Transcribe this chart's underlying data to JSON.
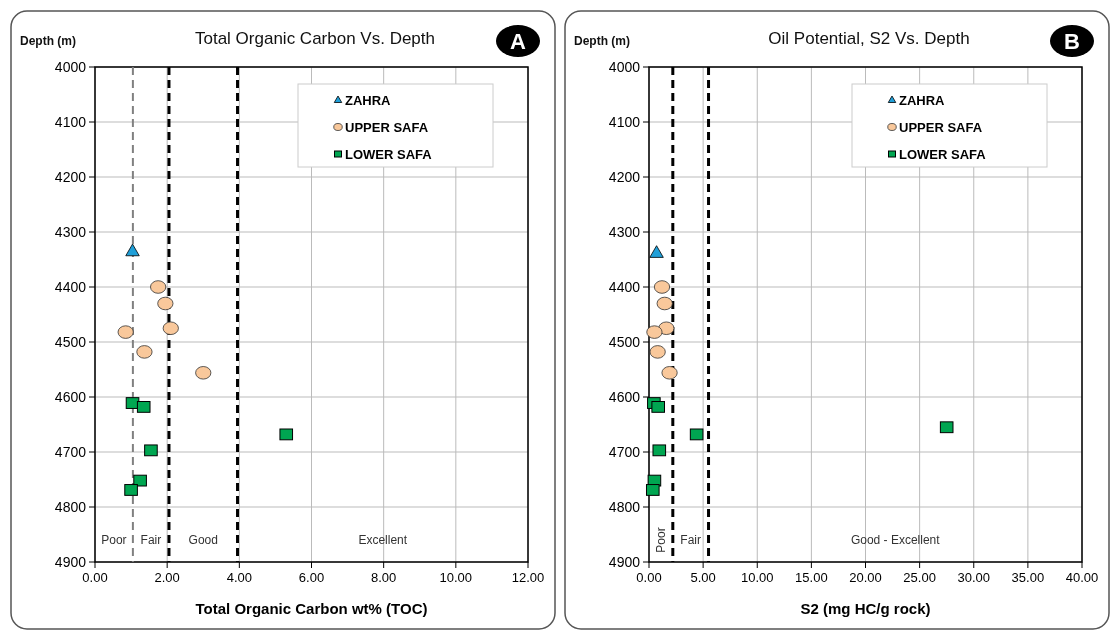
{
  "chart_data": [
    {
      "type": "scatter",
      "title": "Total Organic Carbon Vs. Depth",
      "xlabel": "Total Organic Carbon wt% (TOC)",
      "ylabel": "Depth (m)",
      "xlim": [
        0,
        12
      ],
      "xticks": [
        {
          "value": 0,
          "label": "0.00"
        },
        {
          "value": 2,
          "label": "2.00"
        },
        {
          "value": 4,
          "label": "4.00"
        },
        {
          "value": 6,
          "label": "6.00"
        },
        {
          "value": 8,
          "label": "8.00"
        },
        {
          "value": 10,
          "label": "10.00"
        },
        {
          "value": 12,
          "label": "12.00"
        }
      ],
      "ylim": [
        4900,
        4000
      ],
      "yticks": [
        4000,
        4100,
        4200,
        4300,
        4400,
        4500,
        4600,
        4700,
        4800,
        4900
      ],
      "grid": true,
      "legend": "top right",
      "series": [
        {
          "name": "ZAHRA",
          "color": "#1f9fd8",
          "marker": "triangle",
          "x": [
            1.04
          ],
          "values": [
            4335
          ]
        },
        {
          "name": "UPPER SAFA",
          "color": "#f9c89b",
          "marker": "circle",
          "x": [
            1.75,
            1.95,
            2.1,
            0.85,
            1.37,
            3.0
          ],
          "values": [
            4400,
            4430,
            4475,
            4482,
            4518,
            4556
          ]
        },
        {
          "name": "LOWER SAFA",
          "color": "#00a651",
          "marker": "square",
          "x": [
            1.04,
            1.35,
            5.3,
            1.55,
            1.25,
            1.0
          ],
          "values": [
            4611,
            4618,
            4668,
            4697,
            4752,
            4769
          ]
        }
      ],
      "ref_lines": [
        {
          "axis": "x",
          "value": 1.05,
          "color": "#808080",
          "line_style": "dashed"
        },
        {
          "axis": "x",
          "value": 2.05,
          "color": "#000000",
          "line_style": "dashed"
        },
        {
          "axis": "x",
          "value": 3.95,
          "color": "#000000",
          "line_style": "dashed"
        }
      ],
      "annotations": [
        "A",
        "Poor",
        "Fair",
        "Good",
        "Excellent"
      ]
    },
    {
      "type": "scatter",
      "title": "Oil Potential, S2 Vs. Depth",
      "xlabel": "S2 (mg HC/g rock)",
      "ylabel": "Depth (m)",
      "xlim": [
        0,
        40
      ],
      "xticks": [
        {
          "value": 0,
          "label": "0.00"
        },
        {
          "value": 5,
          "label": "5.00"
        },
        {
          "value": 10,
          "label": "10.00"
        },
        {
          "value": 15,
          "label": "15.00"
        },
        {
          "value": 20,
          "label": "20.00"
        },
        {
          "value": 25,
          "label": "25.00"
        },
        {
          "value": 30,
          "label": "30.00"
        },
        {
          "value": 35,
          "label": "35.00"
        },
        {
          "value": 40,
          "label": "40.00"
        }
      ],
      "ylim": [
        4900,
        4000
      ],
      "yticks": [
        4000,
        4100,
        4200,
        4300,
        4400,
        4500,
        4600,
        4700,
        4800,
        4900
      ],
      "grid": true,
      "legend": "top right",
      "series": [
        {
          "name": "ZAHRA",
          "color": "#1f9fd8",
          "marker": "triangle",
          "x": [
            0.7
          ],
          "values": [
            4338
          ]
        },
        {
          "name": "UPPER SAFA",
          "color": "#f9c89b",
          "marker": "circle",
          "x": [
            1.2,
            1.45,
            1.6,
            0.5,
            0.8,
            1.9
          ],
          "values": [
            4400,
            4430,
            4475,
            4482,
            4518,
            4556
          ]
        },
        {
          "name": "LOWER SAFA",
          "color": "#00a651",
          "marker": "square",
          "x": [
            0.45,
            0.85,
            4.4,
            27.5,
            0.95,
            0.5,
            0.35
          ],
          "values": [
            4611,
            4618,
            4668,
            4655,
            4697,
            4752,
            4769
          ]
        }
      ],
      "ref_lines": [
        {
          "axis": "x",
          "value": 2.2,
          "color": "#000000",
          "line_style": "dashed"
        },
        {
          "axis": "x",
          "value": 5.5,
          "color": "#000000",
          "line_style": "dashed"
        }
      ],
      "annotations": [
        "B",
        "Poor",
        "Fair",
        "Good - Excellent"
      ]
    }
  ]
}
